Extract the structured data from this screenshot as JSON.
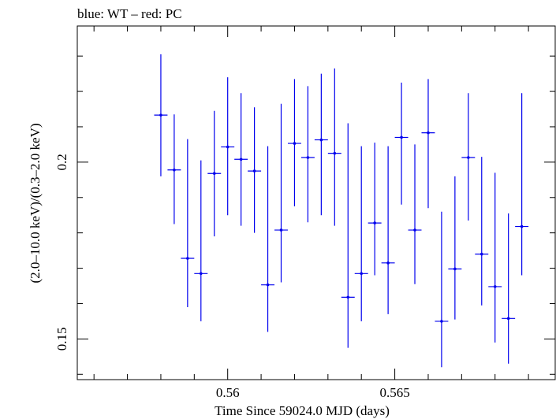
{
  "chart_data": {
    "type": "scatter",
    "title": "blue: WT – red: PC",
    "xlabel": "Time Since 59024.0 MJD (days)",
    "ylabel": "(2.0–10.0 keV)/(0.3–2.0 keV)",
    "xlim": [
      0.5555,
      0.5698
    ],
    "ylim": [
      0.1385,
      0.2385
    ],
    "x_ticks": [
      {
        "value": 0.56,
        "label": "0.56"
      },
      {
        "value": 0.565,
        "label": "0.565"
      }
    ],
    "y_ticks": [
      {
        "value": 0.15,
        "label": "0.15"
      },
      {
        "value": 0.2,
        "label": "0.2"
      }
    ],
    "grid": false,
    "series": [
      {
        "color": "#0000ee",
        "x": [
          0.558,
          0.5584,
          0.5588,
          0.5592,
          0.5596,
          0.56,
          0.5604,
          0.5608,
          0.5612,
          0.5616,
          0.562,
          0.5624,
          0.5628,
          0.5632,
          0.5636,
          0.564,
          0.5644,
          0.5648,
          0.5652,
          0.5656,
          0.566,
          0.5664,
          0.5668,
          0.5672,
          0.5676,
          0.568,
          0.5684,
          0.5688
        ],
        "y": [
          0.2133,
          0.1978,
          0.1728,
          0.1685,
          0.1968,
          0.2043,
          0.2008,
          0.1975,
          0.1653,
          0.1808,
          0.2053,
          0.2013,
          0.2063,
          0.2025,
          0.1618,
          0.1685,
          0.1828,
          0.1715,
          0.207,
          0.1808,
          0.2083,
          0.155,
          0.1698,
          0.2013,
          0.174,
          0.1648,
          0.1558,
          0.1818
        ],
        "xerr": [
          0.0002,
          0.0002,
          0.0002,
          0.0002,
          0.0002,
          0.0002,
          0.0002,
          0.0002,
          0.0002,
          0.0002,
          0.0002,
          0.0002,
          0.0002,
          0.0002,
          0.0002,
          0.0002,
          0.0002,
          0.0002,
          0.0002,
          0.0002,
          0.0002,
          0.0002,
          0.0002,
          0.0002,
          0.0002,
          0.0002,
          0.0002,
          0.0002
        ],
        "y_low": [
          0.196,
          0.1825,
          0.159,
          0.155,
          0.179,
          0.185,
          0.182,
          0.18,
          0.152,
          0.166,
          0.1875,
          0.183,
          0.185,
          0.182,
          0.1475,
          0.155,
          0.168,
          0.157,
          0.188,
          0.1655,
          0.187,
          0.142,
          0.1555,
          0.1835,
          0.1595,
          0.149,
          0.143,
          0.168
        ],
        "y_high": [
          0.2305,
          0.2135,
          0.2065,
          0.2005,
          0.2145,
          0.224,
          0.2195,
          0.2155,
          0.2045,
          0.2165,
          0.2235,
          0.2215,
          0.225,
          0.2265,
          0.211,
          0.2045,
          0.2055,
          0.2045,
          0.2225,
          0.205,
          0.2235,
          0.186,
          0.196,
          0.2195,
          0.2015,
          0.197,
          0.1855,
          0.2195
        ]
      }
    ]
  }
}
